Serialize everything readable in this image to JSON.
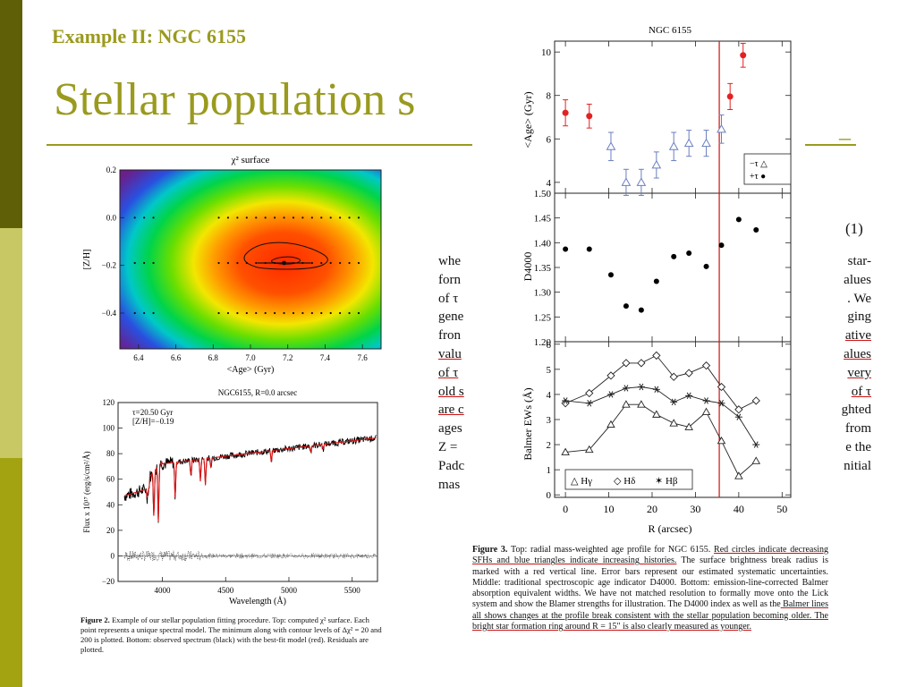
{
  "slide": {
    "subtitle": "Example II: NGC 6155",
    "title": "Stellar population s",
    "title_dash": "–",
    "colors": {
      "accent": "#9a9a1e",
      "stripe_dark": "#5f5f07",
      "stripe_light": "#c8c864",
      "stripe_mid": "#a3a312"
    }
  },
  "paper_text": {
    "eq_number": "(1)",
    "left_fragments": [
      "whe",
      "forn",
      "of τ",
      "gene",
      "fron",
      "valu",
      "of τ",
      "old s",
      "are c",
      "ages",
      "Z =",
      "Padc",
      "mas"
    ],
    "right_fragments": [
      "star-",
      "alues",
      ". We",
      "ging",
      "ative",
      "alues",
      "very",
      "of τ",
      "ghted",
      "from",
      "e the",
      "nitial"
    ]
  },
  "fig2": {
    "caption_label": "Figure 2.",
    "caption_text": "Example of our stellar population fitting procedure. Top: computed χ² surface. Each point represents a unique spectral model. The minimum along with contour levels of Δχ² = 20 and 200 is plotted. Bottom: observed spectrum (black) with the best-fit model (red). Residuals are plotted."
  },
  "chart_data": [
    {
      "type": "heatmap",
      "title": "χ² surface",
      "xlabel": "<Age> (Gyr)",
      "ylabel": "[Z/H]",
      "xlim": [
        6.3,
        7.7
      ],
      "ylim": [
        -0.55,
        0.2
      ],
      "xticks": [
        "6.4",
        "6.6",
        "6.8",
        "7.0",
        "7.2",
        "7.4",
        "7.6"
      ],
      "yticks": [
        "0.2",
        "0.0",
        "−0.2",
        "−0.4"
      ],
      "minimum": {
        "x": 7.18,
        "y": -0.19
      },
      "grid_rows": [
        0.0,
        -0.19,
        -0.4
      ]
    },
    {
      "type": "line",
      "title": "NGC6155, R=0.0 arcsec",
      "annotation": [
        "τ=20.50 Gyr",
        "[Z/H]=−0.19"
      ],
      "xlabel": "Wavelength (Å)",
      "ylabel": "Flux x 10¹⁷ (erg/s/cm²/Å)",
      "xlim": [
        3650,
        5700
      ],
      "ylim": [
        -20,
        120
      ],
      "xticks": [
        "4000",
        "4500",
        "5000",
        "5500"
      ],
      "yticks": [
        "120",
        "100",
        "80",
        "60",
        "40",
        "20",
        "0",
        "−20"
      ],
      "series": [
        {
          "name": "observed spectrum",
          "color": "#000000"
        },
        {
          "name": "best-fit model",
          "color": "#dd1111"
        },
        {
          "name": "residuals",
          "color": "#000000"
        }
      ]
    },
    {
      "type": "scatter",
      "title": "NGC 6155",
      "ylabel": "<Age> (Gyr)",
      "ylim": [
        3.5,
        10.5
      ],
      "yticks": [
        "10",
        "8",
        "6",
        "4"
      ],
      "legend": [
        "−τ △",
        "+τ ●"
      ],
      "legend_position": "bottom-right",
      "break_radius": 35.5,
      "series": [
        {
          "name": "+τ",
          "marker": "circle",
          "color": "#e22222",
          "x": [
            0,
            5.5,
            38,
            41
          ],
          "values": [
            7.2,
            7.05,
            7.95,
            9.85
          ],
          "err": [
            0.6,
            0.55,
            0.6,
            0.55
          ]
        },
        {
          "name": "−τ",
          "marker": "triangle",
          "color": "#6b7fc0",
          "x": [
            10.5,
            14,
            17.5,
            21,
            25,
            28.5,
            32.5,
            36
          ],
          "values": [
            5.65,
            4.0,
            4.0,
            4.8,
            5.65,
            5.8,
            5.8,
            6.45
          ],
          "err": [
            0.65,
            0.6,
            0.6,
            0.6,
            0.65,
            0.6,
            0.6,
            0.65
          ]
        }
      ]
    },
    {
      "type": "scatter",
      "ylabel": "D4000",
      "ylim": [
        1.2,
        1.5
      ],
      "yticks": [
        "1.50",
        "1.45",
        "1.40",
        "1.35",
        "1.30",
        "1.25",
        "1.20"
      ],
      "series": [
        {
          "name": "D4000",
          "marker": "circle",
          "color": "#000000",
          "x": [
            0,
            5.5,
            10.5,
            14,
            17.5,
            21,
            25,
            28.5,
            32.5,
            36,
            40,
            44
          ],
          "values": [
            1.387,
            1.387,
            1.335,
            1.272,
            1.264,
            1.322,
            1.372,
            1.379,
            1.352,
            1.395,
            1.447,
            1.426
          ]
        }
      ]
    },
    {
      "type": "line",
      "ylabel": "Balmer EWs (Å)",
      "xlabel": "R (arcsec)",
      "xlim": [
        -2.5,
        52
      ],
      "ylim": [
        -0.1,
        6.1
      ],
      "xticks": [
        "0",
        "10",
        "20",
        "30",
        "40",
        "50"
      ],
      "yticks": [
        "6",
        "5",
        "4",
        "3",
        "2",
        "1",
        "0"
      ],
      "legend": [
        "△ Hγ",
        "◇ Hδ",
        "✶ Hβ"
      ],
      "legend_position": "bottom-left",
      "series": [
        {
          "name": "Hγ",
          "marker": "triangle",
          "x": [
            0,
            5.5,
            10.5,
            14,
            17.5,
            21,
            25,
            28.5,
            32.5,
            36,
            40,
            44
          ],
          "values": [
            1.7,
            1.8,
            2.8,
            3.6,
            3.6,
            3.2,
            2.85,
            2.7,
            3.3,
            2.15,
            0.75,
            1.35
          ]
        },
        {
          "name": "Hδ",
          "marker": "diamond",
          "x": [
            0,
            5.5,
            10.5,
            14,
            17.5,
            21,
            25,
            28.5,
            32.5,
            36,
            40,
            44
          ],
          "values": [
            3.65,
            4.05,
            4.75,
            5.25,
            5.25,
            5.55,
            4.7,
            4.85,
            5.15,
            4.3,
            3.4,
            3.75
          ]
        },
        {
          "name": "Hβ",
          "marker": "star",
          "x": [
            0,
            5.5,
            10.5,
            14,
            17.5,
            21,
            25,
            28.5,
            32.5,
            36,
            40,
            44
          ],
          "values": [
            3.75,
            3.65,
            4.0,
            4.25,
            4.3,
            4.2,
            3.7,
            3.95,
            3.75,
            3.65,
            3.1,
            2.0
          ]
        }
      ]
    }
  ],
  "fig3": {
    "caption_label": "Figure 3.",
    "caption_pre": " Top: radial mass-weighted age profile for NGC 6155. ",
    "caption_hl1": "Red circles indicate decreasing SFHs and blue triangles indicate increasing histories.",
    "caption_mid": " The surface brightness break radius is marked with a red vertical line. Error bars represent our estimated systematic uncertainties. Middle: traditional spectroscopic age indicator D4000. Bottom: emission-line-corrected Balmer absorption equivalent widths. We have not matched resolution to formally move onto the Lick system and show the Blamer strengths for illustration. The D4000 index as well as the",
    "caption_hl2": " Balmer lines all shows changes at the profile break consistent with the stellar population becoming older. The bright star formation ring around ",
    "caption_hl3": "R = 15″ is also clearly measured as younger."
  }
}
